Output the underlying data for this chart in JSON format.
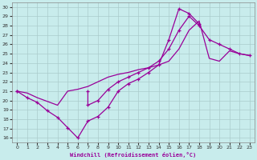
{
  "background_color": "#c8ecec",
  "grid_color": "#b8d8d8",
  "line_color": "#990099",
  "xlabel": "Windchill (Refroidissement éolien,°C)",
  "xlim": [
    -0.5,
    23.5
  ],
  "ylim": [
    15.5,
    30.5
  ],
  "yticks": [
    16,
    17,
    18,
    19,
    20,
    21,
    22,
    23,
    24,
    25,
    26,
    27,
    28,
    29,
    30
  ],
  "xticks": [
    0,
    1,
    2,
    3,
    4,
    5,
    6,
    7,
    8,
    9,
    10,
    11,
    12,
    13,
    14,
    15,
    16,
    17,
    18,
    19,
    20,
    21,
    22,
    23
  ],
  "line1_x": [
    0,
    1,
    2,
    3,
    4,
    5,
    6,
    7,
    8,
    9,
    10,
    11,
    12,
    13,
    14,
    15,
    16,
    17,
    18,
    19,
    20,
    21,
    22,
    23
  ],
  "line1_y": [
    21.0,
    20.3,
    19.8,
    18.9,
    18.2,
    17.1,
    16.0,
    17.8,
    18.3,
    19.3,
    21.0,
    21.8,
    22.3,
    23.0,
    23.8,
    26.5,
    29.8,
    29.3,
    28.2,
    null,
    null,
    null,
    null,
    null
  ],
  "line2_x": [
    0,
    1,
    2,
    3,
    4,
    5,
    6,
    7,
    8,
    9,
    10,
    11,
    12,
    13,
    14,
    15,
    16,
    17,
    18,
    19,
    20,
    21,
    22,
    23
  ],
  "line2_y": [
    21.0,
    null,
    null,
    null,
    null,
    null,
    null,
    19.5,
    20.0,
    21.2,
    22.0,
    22.5,
    23.0,
    23.5,
    24.2,
    25.5,
    27.5,
    29.0,
    28.0,
    26.5,
    26.0,
    25.5,
    25.0,
    24.8
  ],
  "line3_x": [
    0,
    1,
    2,
    3,
    4,
    5,
    6,
    7,
    8,
    9,
    10,
    11,
    12,
    13,
    14,
    15,
    16,
    17,
    18,
    19,
    20,
    21,
    22,
    23
  ],
  "line3_y": [
    21.0,
    20.8,
    20.3,
    19.9,
    19.5,
    21.0,
    21.2,
    21.5,
    22.0,
    22.5,
    22.8,
    23.0,
    23.3,
    23.5,
    23.8,
    24.2,
    25.5,
    27.5,
    28.5,
    24.5,
    24.2,
    25.3,
    25.0,
    24.8
  ]
}
